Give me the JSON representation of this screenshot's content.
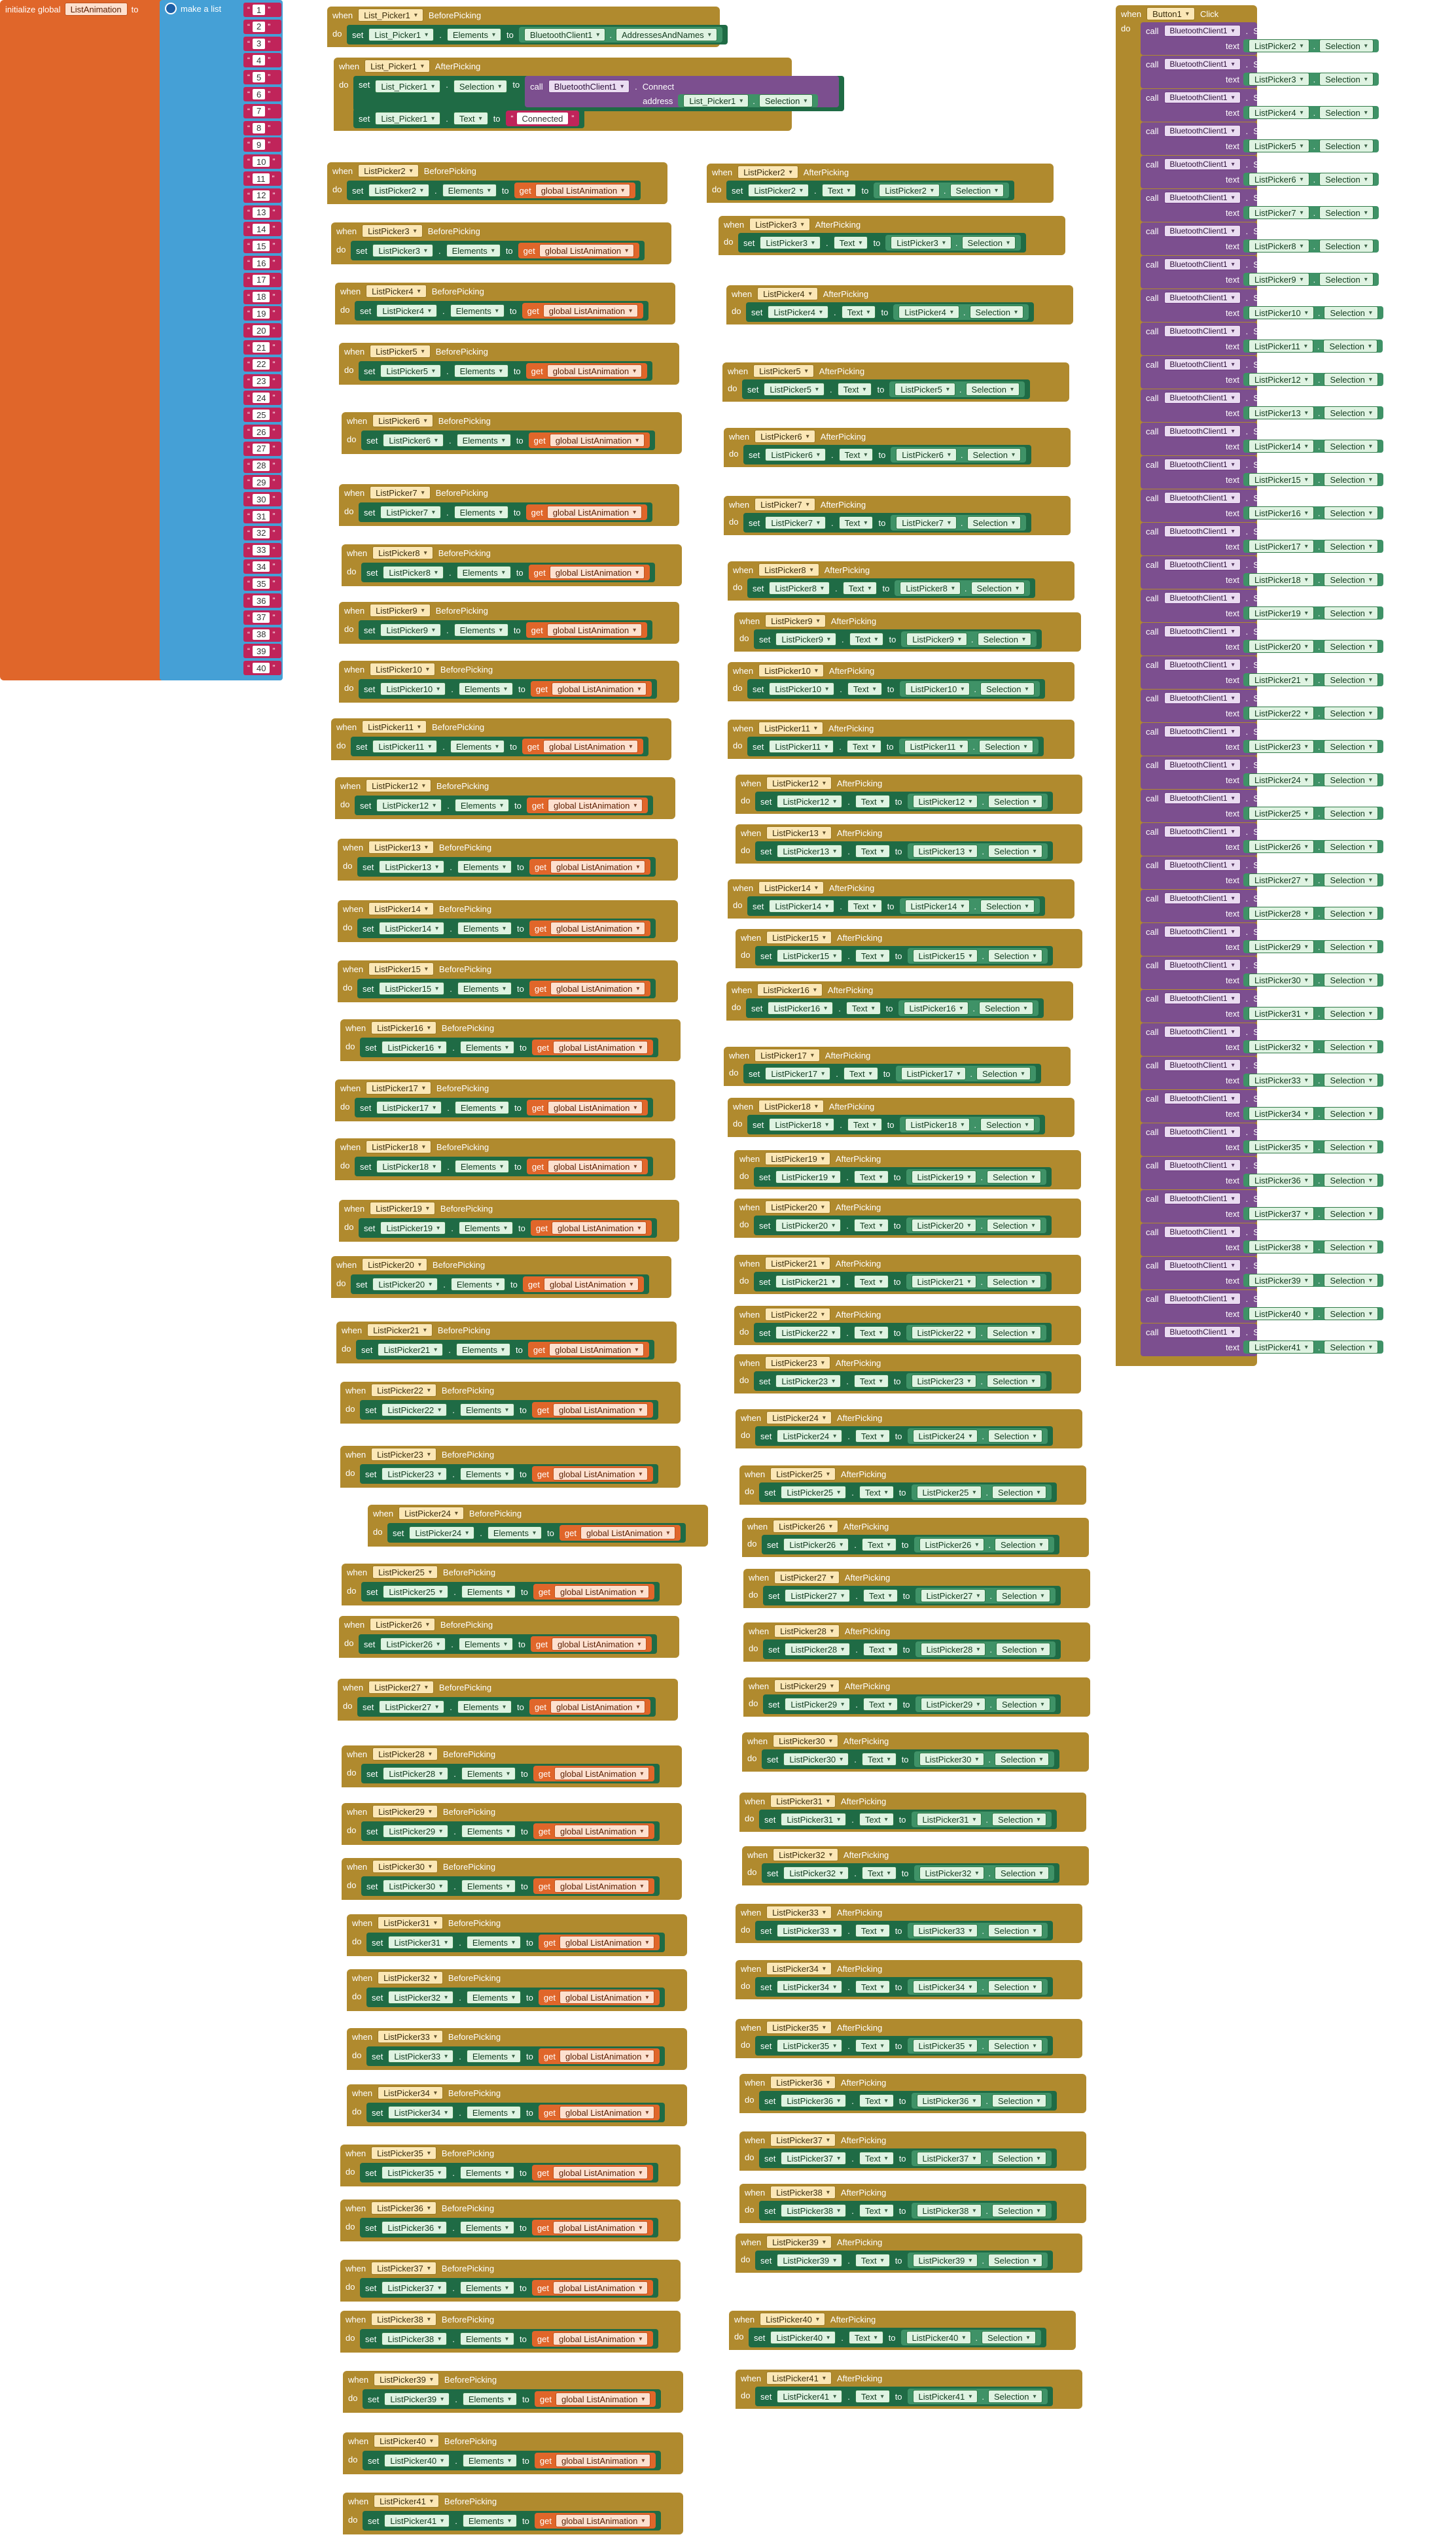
{
  "global_init": {
    "initialize_label": "initialize global",
    "var_name": "ListAnimation",
    "to_label": "to",
    "make_list_label": "make a list",
    "items": [
      "1",
      "2",
      "3",
      "4",
      "5",
      "6",
      "7",
      "8",
      "9",
      "10",
      "11",
      "12",
      "13",
      "14",
      "15",
      "16",
      "17",
      "18",
      "19",
      "20",
      "21",
      "22",
      "23",
      "24",
      "25",
      "26",
      "27",
      "28",
      "29",
      "30",
      "31",
      "32",
      "33",
      "34",
      "35",
      "36",
      "37",
      "38",
      "39",
      "40"
    ]
  },
  "labels": {
    "when": "when",
    "do": "do",
    "set": "set",
    "to": "to",
    "call": "call",
    "get": "get",
    "text": "text",
    "address": "address",
    "quote_open": "“",
    "quote_close": "”"
  },
  "lp1_before": {
    "component": "List_Picker1",
    "event": "BeforePicking",
    "prop_comp": "List_Picker1",
    "prop": "Elements",
    "src_comp": "BluetoothClient1",
    "src_prop": "AddressesAndNames"
  },
  "lp1_after": {
    "component": "List_Picker1",
    "event": "AfterPicking",
    "sel_comp": "List_Picker1",
    "sel_prop": "Selection",
    "call_comp": "BluetoothClient1",
    "call_method": "Connect",
    "addr_comp": "List_Picker1",
    "addr_prop": "Selection",
    "text_comp": "List_Picker1",
    "text_prop": "Text",
    "text_value": "Connected"
  },
  "before_blocks": [
    {
      "comp": "ListPicker2",
      "event": "BeforePicking",
      "prop": "Elements",
      "get": "global ListAnimation"
    },
    {
      "comp": "ListPicker3",
      "event": "BeforePicking",
      "prop": "Elements",
      "get": "global ListAnimation"
    },
    {
      "comp": "ListPicker4",
      "event": "BeforePicking",
      "prop": "Elements",
      "get": "global ListAnimation"
    },
    {
      "comp": "ListPicker5",
      "event": "BeforePicking",
      "prop": "Elements",
      "get": "global ListAnimation"
    },
    {
      "comp": "ListPicker6",
      "event": "BeforePicking",
      "prop": "Elements",
      "get": "global ListAnimation"
    },
    {
      "comp": "ListPicker7",
      "event": "BeforePicking",
      "prop": "Elements",
      "get": "global ListAnimation"
    },
    {
      "comp": "ListPicker8",
      "event": "BeforePicking",
      "prop": "Elements",
      "get": "global ListAnimation"
    },
    {
      "comp": "ListPicker9",
      "event": "BeforePicking",
      "prop": "Elements",
      "get": "global ListAnimation"
    },
    {
      "comp": "ListPicker10",
      "event": "BeforePicking",
      "prop": "Elements",
      "get": "global ListAnimation"
    },
    {
      "comp": "ListPicker11",
      "event": "BeforePicking",
      "prop": "Elements",
      "get": "global ListAnimation"
    },
    {
      "comp": "ListPicker12",
      "event": "BeforePicking",
      "prop": "Elements",
      "get": "global ListAnimation"
    },
    {
      "comp": "ListPicker13",
      "event": "BeforePicking",
      "prop": "Elements",
      "get": "global ListAnimation"
    },
    {
      "comp": "ListPicker14",
      "event": "BeforePicking",
      "prop": "Elements",
      "get": "global ListAnimation"
    },
    {
      "comp": "ListPicker15",
      "event": "BeforePicking",
      "prop": "Elements",
      "get": "global ListAnimation"
    },
    {
      "comp": "ListPicker16",
      "event": "BeforePicking",
      "prop": "Elements",
      "get": "global ListAnimation"
    },
    {
      "comp": "ListPicker17",
      "event": "BeforePicking",
      "prop": "Elements",
      "get": "global ListAnimation"
    },
    {
      "comp": "ListPicker18",
      "event": "BeforePicking",
      "prop": "Elements",
      "get": "global ListAnimation"
    },
    {
      "comp": "ListPicker19",
      "event": "BeforePicking",
      "prop": "Elements",
      "get": "global ListAnimation"
    },
    {
      "comp": "ListPicker20",
      "event": "BeforePicking",
      "prop": "Elements",
      "get": "global ListAnimation"
    },
    {
      "comp": "ListPicker21",
      "event": "BeforePicking",
      "prop": "Elements",
      "get": "global ListAnimation"
    },
    {
      "comp": "ListPicker22",
      "event": "BeforePicking",
      "prop": "Elements",
      "get": "global ListAnimation"
    },
    {
      "comp": "ListPicker23",
      "event": "BeforePicking",
      "prop": "Elements",
      "get": "global ListAnimation"
    },
    {
      "comp": "ListPicker24",
      "event": "BeforePicking",
      "prop": "Elements",
      "get": "global ListAnimation"
    },
    {
      "comp": "ListPicker25",
      "event": "BeforePicking",
      "prop": "Elements",
      "get": "global ListAnimation"
    },
    {
      "comp": "ListPicker26",
      "event": "BeforePicking",
      "prop": "Elements",
      "get": "global ListAnimation"
    },
    {
      "comp": "ListPicker27",
      "event": "BeforePicking",
      "prop": "Elements",
      "get": "global ListAnimation"
    },
    {
      "comp": "ListPicker28",
      "event": "BeforePicking",
      "prop": "Elements",
      "get": "global ListAnimation"
    },
    {
      "comp": "ListPicker29",
      "event": "BeforePicking",
      "prop": "Elements",
      "get": "global ListAnimation"
    },
    {
      "comp": "ListPicker30",
      "event": "BeforePicking",
      "prop": "Elements",
      "get": "global ListAnimation"
    },
    {
      "comp": "ListPicker31",
      "event": "BeforePicking",
      "prop": "Elements",
      "get": "global ListAnimation"
    },
    {
      "comp": "ListPicker32",
      "event": "BeforePicking",
      "prop": "Elements",
      "get": "global ListAnimation"
    },
    {
      "comp": "ListPicker33",
      "event": "BeforePicking",
      "prop": "Elements",
      "get": "global ListAnimation"
    },
    {
      "comp": "ListPicker34",
      "event": "BeforePicking",
      "prop": "Elements",
      "get": "global ListAnimation"
    },
    {
      "comp": "ListPicker35",
      "event": "BeforePicking",
      "prop": "Elements",
      "get": "global ListAnimation"
    },
    {
      "comp": "ListPicker36",
      "event": "BeforePicking",
      "prop": "Elements",
      "get": "global ListAnimation"
    },
    {
      "comp": "ListPicker37",
      "event": "BeforePicking",
      "prop": "Elements",
      "get": "global ListAnimation"
    },
    {
      "comp": "ListPicker38",
      "event": "BeforePicking",
      "prop": "Elements",
      "get": "global ListAnimation"
    },
    {
      "comp": "ListPicker39",
      "event": "BeforePicking",
      "prop": "Elements",
      "get": "global ListAnimation"
    },
    {
      "comp": "ListPicker40",
      "event": "BeforePicking",
      "prop": "Elements",
      "get": "global ListAnimation"
    },
    {
      "comp": "ListPicker41",
      "event": "BeforePicking",
      "prop": "Elements",
      "get": "global ListAnimation"
    }
  ],
  "after_blocks": [
    {
      "comp": "ListPicker2",
      "event": "AfterPicking",
      "prop": "Text",
      "sel": "Selection"
    },
    {
      "comp": "ListPicker3",
      "event": "AfterPicking",
      "prop": "Text",
      "sel": "Selection"
    },
    {
      "comp": "ListPicker4",
      "event": "AfterPicking",
      "prop": "Text",
      "sel": "Selection"
    },
    {
      "comp": "ListPicker5",
      "event": "AfterPicking",
      "prop": "Text",
      "sel": "Selection"
    },
    {
      "comp": "ListPicker6",
      "event": "AfterPicking",
      "prop": "Text",
      "sel": "Selection"
    },
    {
      "comp": "ListPicker7",
      "event": "AfterPicking",
      "prop": "Text",
      "sel": "Selection"
    },
    {
      "comp": "ListPicker8",
      "event": "AfterPicking",
      "prop": "Text",
      "sel": "Selection"
    },
    {
      "comp": "ListPicker9",
      "event": "AfterPicking",
      "prop": "Text",
      "sel": "Selection"
    },
    {
      "comp": "ListPicker10",
      "event": "AfterPicking",
      "prop": "Text",
      "sel": "Selection"
    },
    {
      "comp": "ListPicker11",
      "event": "AfterPicking",
      "prop": "Text",
      "sel": "Selection"
    },
    {
      "comp": "ListPicker12",
      "event": "AfterPicking",
      "prop": "Text",
      "sel": "Selection"
    },
    {
      "comp": "ListPicker13",
      "event": "AfterPicking",
      "prop": "Text",
      "sel": "Selection"
    },
    {
      "comp": "ListPicker14",
      "event": "AfterPicking",
      "prop": "Text",
      "sel": "Selection"
    },
    {
      "comp": "ListPicker15",
      "event": "AfterPicking",
      "prop": "Text",
      "sel": "Selection"
    },
    {
      "comp": "ListPicker16",
      "event": "AfterPicking",
      "prop": "Text",
      "sel": "Selection"
    },
    {
      "comp": "ListPicker17",
      "event": "AfterPicking",
      "prop": "Text",
      "sel": "Selection"
    },
    {
      "comp": "ListPicker18",
      "event": "AfterPicking",
      "prop": "Text",
      "sel": "Selection"
    },
    {
      "comp": "ListPicker19",
      "event": "AfterPicking",
      "prop": "Text",
      "sel": "Selection"
    },
    {
      "comp": "ListPicker20",
      "event": "AfterPicking",
      "prop": "Text",
      "sel": "Selection"
    },
    {
      "comp": "ListPicker21",
      "event": "AfterPicking",
      "prop": "Text",
      "sel": "Selection"
    },
    {
      "comp": "ListPicker22",
      "event": "AfterPicking",
      "prop": "Text",
      "sel": "Selection"
    },
    {
      "comp": "ListPicker23",
      "event": "AfterPicking",
      "prop": "Text",
      "sel": "Selection"
    },
    {
      "comp": "ListPicker24",
      "event": "AfterPicking",
      "prop": "Text",
      "sel": "Selection"
    },
    {
      "comp": "ListPicker25",
      "event": "AfterPicking",
      "prop": "Text",
      "sel": "Selection"
    },
    {
      "comp": "ListPicker26",
      "event": "AfterPicking",
      "prop": "Text",
      "sel": "Selection"
    },
    {
      "comp": "ListPicker27",
      "event": "AfterPicking",
      "prop": "Text",
      "sel": "Selection"
    },
    {
      "comp": "ListPicker28",
      "event": "AfterPicking",
      "prop": "Text",
      "sel": "Selection"
    },
    {
      "comp": "ListPicker29",
      "event": "AfterPicking",
      "prop": "Text",
      "sel": "Selection"
    },
    {
      "comp": "ListPicker30",
      "event": "AfterPicking",
      "prop": "Text",
      "sel": "Selection"
    },
    {
      "comp": "ListPicker31",
      "event": "AfterPicking",
      "prop": "Text",
      "sel": "Selection"
    },
    {
      "comp": "ListPicker32",
      "event": "AfterPicking",
      "prop": "Text",
      "sel": "Selection"
    },
    {
      "comp": "ListPicker33",
      "event": "AfterPicking",
      "prop": "Text",
      "sel": "Selection"
    },
    {
      "comp": "ListPicker34",
      "event": "AfterPicking",
      "prop": "Text",
      "sel": "Selection"
    },
    {
      "comp": "ListPicker35",
      "event": "AfterPicking",
      "prop": "Text",
      "sel": "Selection"
    },
    {
      "comp": "ListPicker36",
      "event": "AfterPicking",
      "prop": "Text",
      "sel": "Selection"
    },
    {
      "comp": "ListPicker37",
      "event": "AfterPicking",
      "prop": "Text",
      "sel": "Selection"
    },
    {
      "comp": "ListPicker38",
      "event": "AfterPicking",
      "prop": "Text",
      "sel": "Selection"
    },
    {
      "comp": "ListPicker39",
      "event": "AfterPicking",
      "prop": "Text",
      "sel": "Selection"
    },
    {
      "comp": "ListPicker40",
      "event": "AfterPicking",
      "prop": "Text",
      "sel": "Selection"
    },
    {
      "comp": "ListPicker41",
      "event": "AfterPicking",
      "prop": "Text",
      "sel": "Selection"
    }
  ],
  "button_click": {
    "component": "Button1",
    "event": "Click",
    "call_comp": "BluetoothClient1",
    "call_method": "SendText",
    "sends": [
      {
        "comp": "ListPicker2",
        "prop": "Selection"
      },
      {
        "comp": "ListPicker3",
        "prop": "Selection"
      },
      {
        "comp": "ListPicker4",
        "prop": "Selection"
      },
      {
        "comp": "ListPicker5",
        "prop": "Selection"
      },
      {
        "comp": "ListPicker6",
        "prop": "Selection"
      },
      {
        "comp": "ListPicker7",
        "prop": "Selection"
      },
      {
        "comp": "ListPicker8",
        "prop": "Selection"
      },
      {
        "comp": "ListPicker9",
        "prop": "Selection"
      },
      {
        "comp": "ListPicker10",
        "prop": "Selection"
      },
      {
        "comp": "ListPicker11",
        "prop": "Selection"
      },
      {
        "comp": "ListPicker12",
        "prop": "Selection"
      },
      {
        "comp": "ListPicker13",
        "prop": "Selection"
      },
      {
        "comp": "ListPicker14",
        "prop": "Selection"
      },
      {
        "comp": "ListPicker15",
        "prop": "Selection"
      },
      {
        "comp": "ListPicker16",
        "prop": "Selection"
      },
      {
        "comp": "ListPicker17",
        "prop": "Selection"
      },
      {
        "comp": "ListPicker18",
        "prop": "Selection"
      },
      {
        "comp": "ListPicker19",
        "prop": "Selection"
      },
      {
        "comp": "ListPicker20",
        "prop": "Selection"
      },
      {
        "comp": "ListPicker21",
        "prop": "Selection"
      },
      {
        "comp": "ListPicker22",
        "prop": "Selection"
      },
      {
        "comp": "ListPicker23",
        "prop": "Selection"
      },
      {
        "comp": "ListPicker24",
        "prop": "Selection"
      },
      {
        "comp": "ListPicker25",
        "prop": "Selection"
      },
      {
        "comp": "ListPicker26",
        "prop": "Selection"
      },
      {
        "comp": "ListPicker27",
        "prop": "Selection"
      },
      {
        "comp": "ListPicker28",
        "prop": "Selection"
      },
      {
        "comp": "ListPicker29",
        "prop": "Selection"
      },
      {
        "comp": "ListPicker30",
        "prop": "Selection"
      },
      {
        "comp": "ListPicker31",
        "prop": "Selection"
      },
      {
        "comp": "ListPicker32",
        "prop": "Selection"
      },
      {
        "comp": "ListPicker33",
        "prop": "Selection"
      },
      {
        "comp": "ListPicker34",
        "prop": "Selection"
      },
      {
        "comp": "ListPicker35",
        "prop": "Selection"
      },
      {
        "comp": "ListPicker36",
        "prop": "Selection"
      },
      {
        "comp": "ListPicker37",
        "prop": "Selection"
      },
      {
        "comp": "ListPicker38",
        "prop": "Selection"
      },
      {
        "comp": "ListPicker39",
        "prop": "Selection"
      },
      {
        "comp": "ListPicker40",
        "prop": "Selection"
      },
      {
        "comp": "ListPicker41",
        "prop": "Selection"
      }
    ]
  },
  "colors": {
    "event": "#b08a2e",
    "setter": "#1f6b45",
    "getter": "#e0662a",
    "selection": "#3f9267",
    "text_literal": "#c0245a",
    "bt_call": "#7c4f8f",
    "list": "#45a0d6",
    "init": "#e0662a"
  }
}
